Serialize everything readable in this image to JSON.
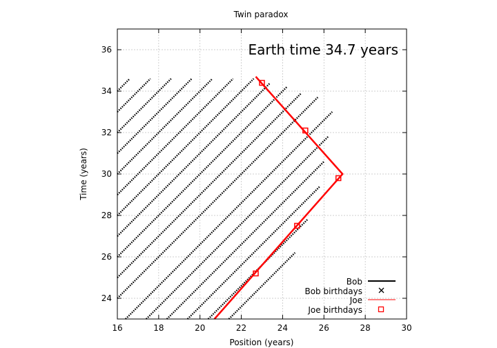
{
  "chart_data": {
    "type": "scatter",
    "title": "Twin paradox",
    "xlabel": "Position (years)",
    "ylabel": "Time (years)",
    "xlim": [
      16,
      30
    ],
    "ylim": [
      23,
      37
    ],
    "xticks": [
      16,
      18,
      20,
      22,
      24,
      26,
      28,
      30
    ],
    "yticks": [
      24,
      26,
      28,
      30,
      32,
      34,
      36
    ],
    "grid": true,
    "legend_position": "bottom-right",
    "annotation": "Earth time 34.7 years",
    "colors": {
      "bob": "#000000",
      "joe": "#ff0000"
    },
    "series": [
      {
        "name": "Bob",
        "style": "dotted diagonal worldline segments at speed of light",
        "segments": [
          {
            "x0": 16,
            "y0": 34.0,
            "x1": 16.6,
            "y1": 34.6
          },
          {
            "x0": 16,
            "y0": 33.0,
            "x1": 17.6,
            "y1": 34.6
          },
          {
            "x0": 16,
            "y0": 32.0,
            "x1": 18.6,
            "y1": 34.6
          },
          {
            "x0": 16,
            "y0": 31.0,
            "x1": 19.6,
            "y1": 34.6
          },
          {
            "x0": 16,
            "y0": 30.0,
            "x1": 20.6,
            "y1": 34.6
          },
          {
            "x0": 16,
            "y0": 29.0,
            "x1": 21.6,
            "y1": 34.6
          },
          {
            "x0": 16,
            "y0": 28.0,
            "x1": 22.6,
            "y1": 34.6
          },
          {
            "x0": 16,
            "y0": 27.0,
            "x1": 23.4,
            "y1": 34.4
          },
          {
            "x0": 16,
            "y0": 26.0,
            "x1": 24.2,
            "y1": 34.2
          },
          {
            "x0": 16,
            "y0": 25.0,
            "x1": 24.9,
            "y1": 33.9
          },
          {
            "x0": 16,
            "y0": 24.0,
            "x1": 25.7,
            "y1": 33.7
          },
          {
            "x0": 16.4,
            "y0": 23.0,
            "x1": 26.4,
            "y1": 33.0
          },
          {
            "x0": 17.4,
            "y0": 23.0,
            "x1": 26.2,
            "y1": 31.8
          },
          {
            "x0": 18.4,
            "y0": 23.0,
            "x1": 26.0,
            "y1": 30.6
          },
          {
            "x0": 19.4,
            "y0": 23.0,
            "x1": 25.8,
            "y1": 29.4
          },
          {
            "x0": 20.4,
            "y0": 23.0,
            "x1": 25.2,
            "y1": 27.8
          },
          {
            "x0": 21.4,
            "y0": 23.0,
            "x1": 24.6,
            "y1": 26.2
          }
        ]
      },
      {
        "name": "Bob birthdays",
        "values": []
      },
      {
        "name": "Joe",
        "style": "solid red worldline",
        "points": [
          {
            "x": 20.7,
            "y": 23.0
          },
          {
            "x": 26.9,
            "y": 30.0
          },
          {
            "x": 22.7,
            "y": 34.7
          }
        ]
      },
      {
        "name": "Joe birthdays",
        "points": [
          {
            "x": 22.7,
            "y": 25.2
          },
          {
            "x": 24.7,
            "y": 27.5
          },
          {
            "x": 26.7,
            "y": 29.8
          },
          {
            "x": 25.1,
            "y": 32.1
          },
          {
            "x": 23.0,
            "y": 34.4
          }
        ]
      }
    ]
  }
}
